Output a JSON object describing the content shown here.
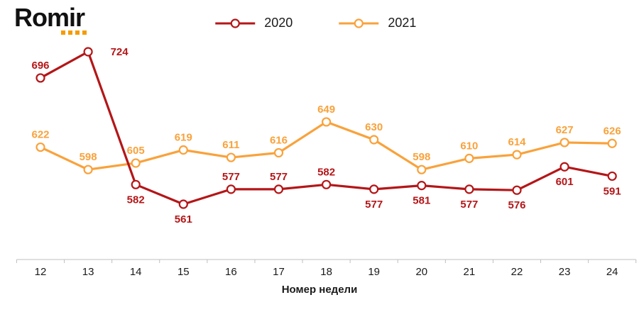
{
  "logo": {
    "text": "Romir"
  },
  "chart_data": {
    "type": "line",
    "title": "",
    "xlabel": "Номер недели",
    "ylabel": "",
    "categories": [
      "12",
      "13",
      "14",
      "15",
      "16",
      "17",
      "18",
      "19",
      "20",
      "21",
      "22",
      "23",
      "24"
    ],
    "series": [
      {
        "name": "2020",
        "color": "#b41618",
        "values": [
          696,
          724,
          582,
          561,
          577,
          577,
          582,
          577,
          581,
          577,
          576,
          601,
          591
        ],
        "label_pos": [
          "above",
          "right",
          "below",
          "below",
          "above",
          "above",
          "above",
          "below",
          "below",
          "below",
          "below",
          "below",
          "below"
        ]
      },
      {
        "name": "2021",
        "color": "#f9a23b",
        "values": [
          622,
          598,
          605,
          619,
          611,
          616,
          649,
          630,
          598,
          610,
          614,
          627,
          626
        ],
        "label_pos": [
          "above",
          "above",
          "above",
          "above",
          "above",
          "above",
          "above",
          "above",
          "above",
          "above",
          "above",
          "above",
          "above"
        ]
      }
    ],
    "ylim": [
      540,
      740
    ],
    "grid": false,
    "legend_position": "top",
    "marker": "open-circle",
    "axis_color": "#bfbfbf"
  }
}
